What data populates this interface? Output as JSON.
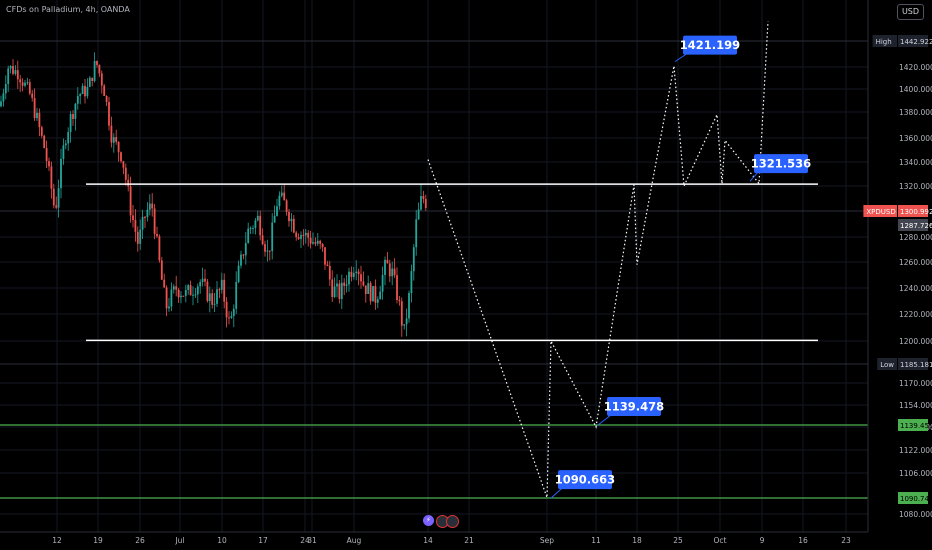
{
  "header": {
    "title": "CFDs on Palladium, 4h, OANDA",
    "currency": "USD"
  },
  "chart_data": {
    "type": "candlestick",
    "symbol": "XPDUSD",
    "y_ticks": [
      1420,
      1400,
      1380,
      1360,
      1340,
      1320,
      1280,
      1260,
      1240,
      1220,
      1200,
      1170,
      1154,
      1138,
      1122,
      1106,
      1080
    ],
    "x_ticks": [
      "12",
      "19",
      "26",
      "Jul",
      "10",
      "17",
      "24",
      "31",
      "Aug",
      "14",
      "21",
      "Sep",
      "11",
      "18",
      "25",
      "Oct",
      "9",
      "16",
      "23"
    ],
    "levels": {
      "resistance": 1321.536,
      "support": 1200.5,
      "green_1": 1139.45,
      "green_2": 1090.746
    },
    "badges": {
      "high": {
        "label": "High",
        "value": "1442.922"
      },
      "low": {
        "label": "Low",
        "value": "1185.181"
      },
      "price": {
        "label": "XPDUSD",
        "value": "1300.992"
      },
      "prev": {
        "value": "1287.726"
      },
      "green_1": {
        "value": "1139.450"
      },
      "green_2": {
        "value": "1090.746"
      }
    },
    "annotations": [
      "1421.199",
      "1321.536",
      "1139.478",
      "1090.663"
    ],
    "projection": [
      [
        "14",
        1342
      ],
      [
        "Sep",
        1091
      ],
      [
        "Sep+4",
        1200
      ],
      [
        "11",
        1138
      ],
      [
        "18-3",
        1321
      ],
      [
        "18",
        1258
      ],
      [
        "25-4",
        1421
      ],
      [
        "25+6",
        1320
      ],
      [
        "Oct-3",
        1378
      ],
      [
        "Oct+2",
        1322
      ],
      [
        "Oct+5",
        1358
      ],
      [
        "9-3",
        1322
      ],
      [
        "9+6",
        1460
      ]
    ],
    "colors": {
      "up": "#26a69a",
      "down": "#ef5350",
      "level": "#ffffff",
      "green": "#4caf50",
      "label": "#2962ff"
    },
    "grid": true
  }
}
